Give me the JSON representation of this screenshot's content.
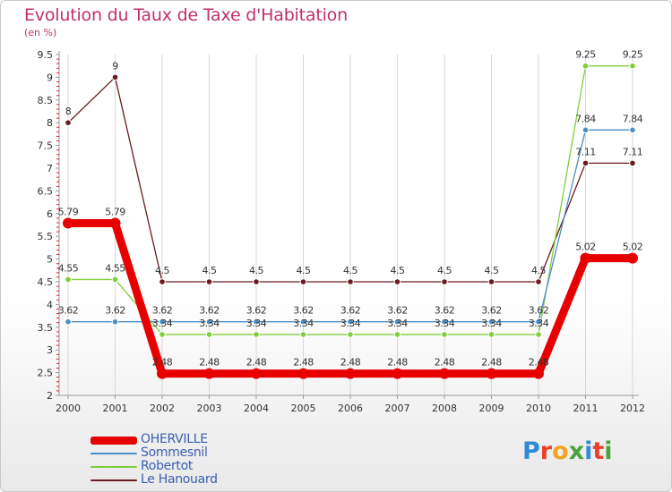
{
  "title": "Evolution du Taux de Taxe d'Habitation",
  "unit": "(en %)",
  "logo": {
    "text": "Proxiti",
    "letter_colors": [
      "#2f8bd6",
      "#e8412b",
      "#f4a320",
      "#49a43c",
      "#2f8bd6",
      "#e8412b",
      "#49a43c"
    ]
  },
  "chart_data": {
    "type": "line",
    "x": [
      2000,
      2001,
      2002,
      2003,
      2004,
      2005,
      2006,
      2007,
      2008,
      2009,
      2010,
      2011,
      2012
    ],
    "x_tick_labels": [
      "2000",
      "2001",
      "2002",
      "2003",
      "2004",
      "2005",
      "2006",
      "2007",
      "2008",
      "2009",
      "2010",
      "2011",
      "2012"
    ],
    "ylim": [
      2,
      9.5
    ],
    "y_ticks": [
      2,
      2.5,
      3,
      3.5,
      4,
      4.5,
      5,
      5.5,
      6,
      6.5,
      7,
      7.5,
      8,
      8.5,
      9,
      9.5
    ],
    "y_tick_labels": [
      "2",
      "2.5",
      "3",
      "3.5",
      "4",
      "4.5",
      "5",
      "5.5",
      "6",
      "6.5",
      "7",
      "7.5",
      "8",
      "8.5",
      "9",
      "9.5"
    ],
    "grid": "vertical",
    "legend_position": "bottom-left",
    "series": [
      {
        "name": "OHERVILLE",
        "color": "#e80000",
        "values": [
          5.79,
          5.79,
          2.48,
          2.48,
          2.48,
          2.48,
          2.48,
          2.48,
          2.48,
          2.48,
          2.48,
          5.02,
          5.02
        ],
        "labels": [
          "5.79",
          "5.79",
          "2.48",
          "2.48",
          "2.48",
          "2.48",
          "2.48",
          "2.48",
          "2.48",
          "2.48",
          "2.48",
          "5.02",
          "5.02"
        ]
      },
      {
        "name": "Sommesnil",
        "color": "#4a8fc8",
        "values": [
          3.62,
          3.62,
          3.62,
          3.62,
          3.62,
          3.62,
          3.62,
          3.62,
          3.62,
          3.62,
          3.62,
          7.84,
          7.84
        ],
        "labels": [
          "3.62",
          "3.62",
          "3.62",
          "3.62",
          "3.62",
          "3.62",
          "3.62",
          "3.62",
          "3.62",
          "3.62",
          "3.62",
          "7.84",
          "7.84"
        ]
      },
      {
        "name": "Robertot",
        "color": "#7fcf3c",
        "values": [
          4.55,
          4.55,
          3.34,
          3.34,
          3.34,
          3.34,
          3.34,
          3.34,
          3.34,
          3.34,
          3.34,
          9.25,
          9.25
        ],
        "labels": [
          "4.55",
          "4.55",
          "3.34",
          "3.34",
          "3.34",
          "3.34",
          "3.34",
          "3.34",
          "3.34",
          "3.34",
          "3.34",
          "9.25",
          "9.25"
        ]
      },
      {
        "name": "Le Hanouard",
        "color": "#6b1a1f",
        "values": [
          8,
          9,
          4.5,
          4.5,
          4.5,
          4.5,
          4.5,
          4.5,
          4.5,
          4.5,
          4.5,
          7.11,
          7.11
        ],
        "labels": [
          "8",
          "9",
          "4.5",
          "4.5",
          "4.5",
          "4.5",
          "4.5",
          "4.5",
          "4.5",
          "4.5",
          "4.5",
          "7.11",
          "7.11"
        ]
      }
    ]
  }
}
